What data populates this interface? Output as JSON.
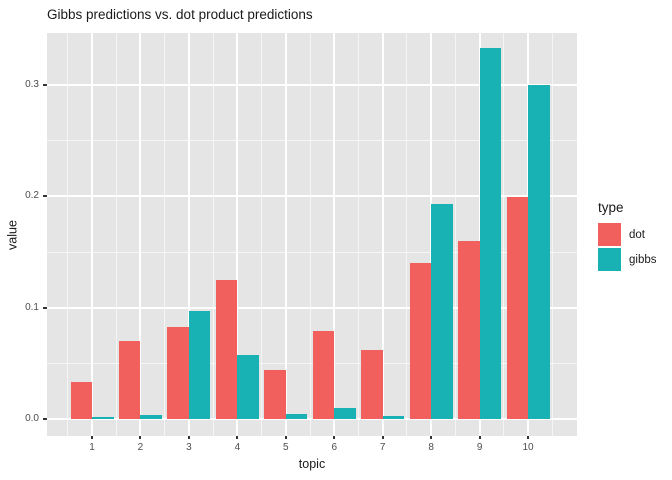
{
  "figure": {
    "title": "Gibbs predictions vs. dot product predictions"
  },
  "chart_data": {
    "type": "bar",
    "title": "Gibbs predictions vs. dot product predictions",
    "xlabel": "topic",
    "ylabel": "value",
    "categories": [
      "1",
      "2",
      "3",
      "4",
      "5",
      "6",
      "7",
      "8",
      "9",
      "10"
    ],
    "series": [
      {
        "name": "dot",
        "color": "#f2605d",
        "values": [
          0.033,
          0.07,
          0.083,
          0.125,
          0.044,
          0.079,
          0.062,
          0.14,
          0.16,
          0.199
        ]
      },
      {
        "name": "gibbs",
        "color": "#19b2b4",
        "values": [
          0.002,
          0.004,
          0.097,
          0.058,
          0.005,
          0.01,
          0.003,
          0.193,
          0.333,
          0.3
        ]
      }
    ],
    "legend": {
      "title": "type",
      "position": "right",
      "entries": [
        "dot",
        "gibbs"
      ]
    },
    "y_ticks": [
      0.0,
      0.1,
      0.2,
      0.3
    ],
    "y_tick_labels": [
      "0.0",
      "0.1",
      "0.2",
      "0.3"
    ],
    "y_minor_ticks": [
      0.05,
      0.15,
      0.25
    ],
    "ylim": [
      -0.015,
      0.3465
    ],
    "grid": true,
    "bar_layout": "dodged",
    "colors": {
      "panel_background": "#e5e5e5",
      "gridline": "#ffffff",
      "axis_text": "#4d4d4d",
      "tick_mark": "#333333",
      "text": "#1a1a1a",
      "figure_background": "#ffffff"
    }
  }
}
